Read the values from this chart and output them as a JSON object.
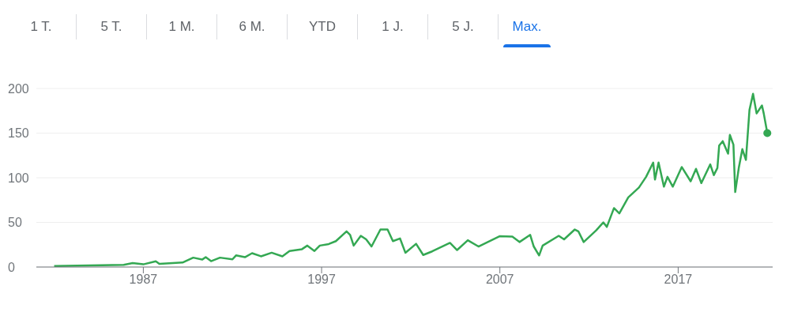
{
  "chart_data": {
    "type": "line",
    "annotations": [
      "1 T.",
      "5 T.",
      "1 M.",
      "6 M.",
      "YTD",
      "1 J.",
      "5 J.",
      "Max."
    ],
    "x": [
      1982.0,
      1985.9,
      1986.4,
      1987.0,
      1987.7,
      1987.9,
      1989.2,
      1989.8,
      1990.3,
      1990.5,
      1990.8,
      1991.3,
      1992.0,
      1992.2,
      1992.7,
      1993.1,
      1993.6,
      1994.2,
      1994.8,
      1995.2,
      1995.9,
      1996.2,
      1996.6,
      1996.9,
      1997.4,
      1997.8,
      1998.4,
      1998.6,
      1998.8,
      1999.2,
      1999.5,
      1999.8,
      2000.3,
      2000.7,
      2001.0,
      2001.4,
      2001.7,
      2002.3,
      2002.7,
      2003.2,
      2004.2,
      2004.6,
      2005.2,
      2005.8,
      2007.0,
      2007.7,
      2008.1,
      2008.7,
      2008.9,
      2009.2,
      2009.4,
      2010.3,
      2010.6,
      2011.2,
      2011.4,
      2011.7,
      2012.4,
      2012.8,
      2013.0,
      2013.4,
      2013.7,
      2014.2,
      2014.8,
      2015.2,
      2015.6,
      2015.7,
      2015.9,
      2016.2,
      2016.4,
      2016.7,
      2017.2,
      2017.7,
      2018.0,
      2018.3,
      2018.8,
      2019.0,
      2019.2,
      2019.3,
      2019.5,
      2019.8,
      2019.9,
      2020.1,
      2020.2,
      2020.4,
      2020.6,
      2020.8,
      2021.0,
      2021.2,
      2021.4,
      2021.7,
      2021.8,
      2022.0
    ],
    "series": [
      {
        "color": "#34a853",
        "values": [
          1,
          2.5,
          4.4,
          3,
          6.4,
          3.5,
          5,
          10.5,
          8.3,
          11,
          6.6,
          10.5,
          8.6,
          13,
          11,
          15.5,
          12,
          16,
          12,
          18,
          20,
          24,
          18,
          24,
          25.7,
          29,
          40,
          36,
          24,
          35,
          31,
          23,
          42,
          42,
          29,
          32,
          16,
          26,
          13.5,
          17.5,
          27,
          19,
          30,
          23,
          34.6,
          34,
          28,
          36,
          23,
          13,
          24,
          35,
          31,
          42,
          40,
          28,
          41,
          50,
          45,
          66,
          60,
          78,
          89,
          101,
          117,
          98,
          117,
          90,
          101,
          90,
          112,
          96,
          110,
          94,
          115,
          103,
          111,
          136,
          141,
          127,
          148,
          137,
          84,
          111,
          132,
          120,
          176,
          194,
          172,
          181,
          172,
          150
        ]
      }
    ],
    "xlim": [
      1981.0,
      2022.3
    ],
    "xticks": [
      1987,
      1997,
      2007,
      2017
    ],
    "ylim": [
      0,
      200
    ],
    "yticks": [
      0,
      50,
      100,
      150,
      200
    ],
    "grid": "y"
  }
}
